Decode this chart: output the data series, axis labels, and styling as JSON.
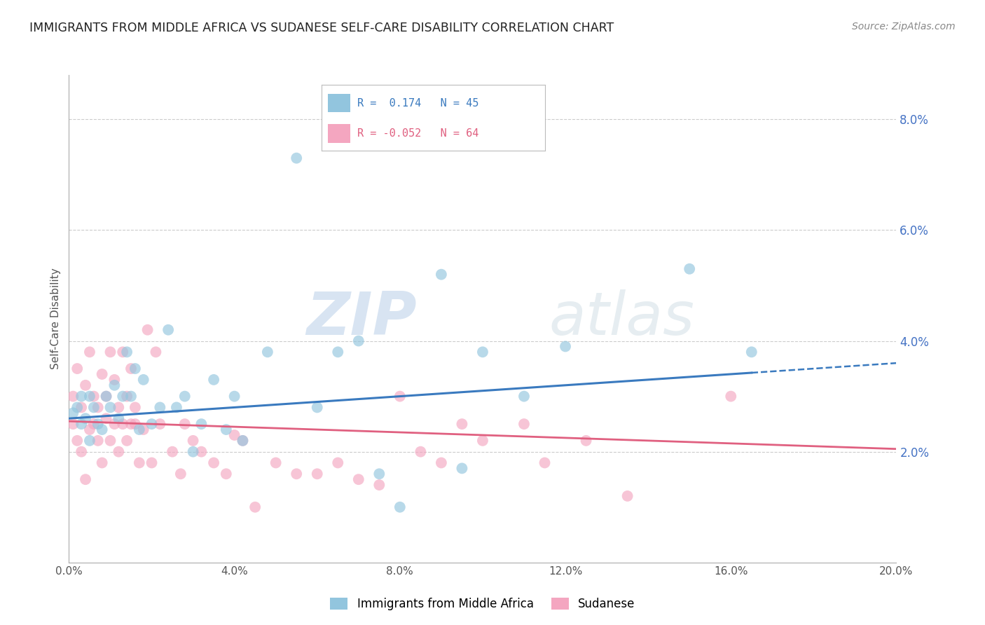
{
  "title": "IMMIGRANTS FROM MIDDLE AFRICA VS SUDANESE SELF-CARE DISABILITY CORRELATION CHART",
  "source": "Source: ZipAtlas.com",
  "ylabel": "Self-Care Disability",
  "legend_label_blue": "Immigrants from Middle Africa",
  "legend_label_pink": "Sudanese",
  "R_blue": 0.174,
  "N_blue": 45,
  "R_pink": -0.052,
  "N_pink": 64,
  "xlim": [
    0.0,
    0.2
  ],
  "ylim": [
    0.0,
    0.088
  ],
  "xticks": [
    0.0,
    0.04,
    0.08,
    0.12,
    0.16,
    0.2
  ],
  "yticks_right": [
    0.02,
    0.04,
    0.06,
    0.08
  ],
  "blue_color": "#92c5de",
  "pink_color": "#f4a6c0",
  "trend_blue_color": "#3a7abf",
  "trend_pink_color": "#e06080",
  "watermark_zip": "ZIP",
  "watermark_atlas": "atlas",
  "blue_scatter_x": [
    0.001,
    0.002,
    0.003,
    0.003,
    0.004,
    0.005,
    0.005,
    0.006,
    0.007,
    0.008,
    0.009,
    0.01,
    0.011,
    0.012,
    0.013,
    0.014,
    0.015,
    0.016,
    0.017,
    0.018,
    0.02,
    0.022,
    0.024,
    0.026,
    0.028,
    0.03,
    0.032,
    0.035,
    0.038,
    0.04,
    0.042,
    0.048,
    0.055,
    0.06,
    0.065,
    0.07,
    0.075,
    0.08,
    0.09,
    0.095,
    0.1,
    0.11,
    0.12,
    0.15,
    0.165
  ],
  "blue_scatter_y": [
    0.027,
    0.028,
    0.03,
    0.025,
    0.026,
    0.022,
    0.03,
    0.028,
    0.025,
    0.024,
    0.03,
    0.028,
    0.032,
    0.026,
    0.03,
    0.038,
    0.03,
    0.035,
    0.024,
    0.033,
    0.025,
    0.028,
    0.042,
    0.028,
    0.03,
    0.02,
    0.025,
    0.033,
    0.024,
    0.03,
    0.022,
    0.038,
    0.073,
    0.028,
    0.038,
    0.04,
    0.016,
    0.01,
    0.052,
    0.017,
    0.038,
    0.03,
    0.039,
    0.053,
    0.038
  ],
  "pink_scatter_x": [
    0.001,
    0.001,
    0.002,
    0.002,
    0.003,
    0.003,
    0.004,
    0.004,
    0.005,
    0.005,
    0.006,
    0.006,
    0.007,
    0.007,
    0.008,
    0.008,
    0.009,
    0.009,
    0.01,
    0.01,
    0.011,
    0.011,
    0.012,
    0.012,
    0.013,
    0.013,
    0.014,
    0.014,
    0.015,
    0.015,
    0.016,
    0.016,
    0.017,
    0.018,
    0.019,
    0.02,
    0.021,
    0.022,
    0.025,
    0.027,
    0.028,
    0.03,
    0.032,
    0.035,
    0.038,
    0.04,
    0.042,
    0.045,
    0.05,
    0.055,
    0.06,
    0.065,
    0.07,
    0.075,
    0.08,
    0.085,
    0.09,
    0.095,
    0.1,
    0.11,
    0.115,
    0.125,
    0.135,
    0.16
  ],
  "pink_scatter_y": [
    0.025,
    0.03,
    0.022,
    0.035,
    0.02,
    0.028,
    0.015,
    0.032,
    0.024,
    0.038,
    0.025,
    0.03,
    0.022,
    0.028,
    0.018,
    0.034,
    0.026,
    0.03,
    0.022,
    0.038,
    0.025,
    0.033,
    0.02,
    0.028,
    0.025,
    0.038,
    0.022,
    0.03,
    0.025,
    0.035,
    0.028,
    0.025,
    0.018,
    0.024,
    0.042,
    0.018,
    0.038,
    0.025,
    0.02,
    0.016,
    0.025,
    0.022,
    0.02,
    0.018,
    0.016,
    0.023,
    0.022,
    0.01,
    0.018,
    0.016,
    0.016,
    0.018,
    0.015,
    0.014,
    0.03,
    0.02,
    0.018,
    0.025,
    0.022,
    0.025,
    0.018,
    0.022,
    0.012,
    0.03
  ],
  "blue_trend_start_x": 0.0,
  "blue_trend_end_solid_x": 0.165,
  "blue_trend_end_dashed_x": 0.2,
  "blue_trend_start_y": 0.026,
  "blue_trend_end_y": 0.036,
  "pink_trend_start_x": 0.0,
  "pink_trend_end_x": 0.2,
  "pink_trend_start_y": 0.0255,
  "pink_trend_end_y": 0.0205
}
